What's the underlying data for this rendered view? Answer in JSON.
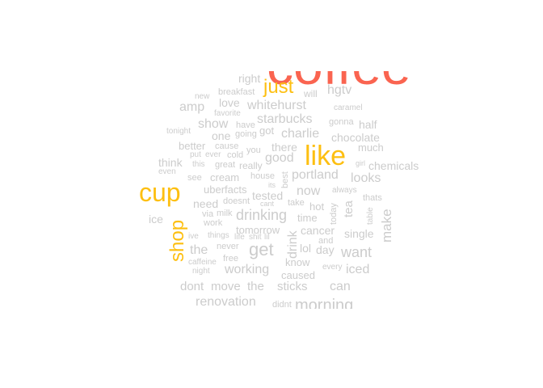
{
  "palette": {
    "low": "#cccccc",
    "mid": "#fdbf11",
    "high": "#fa6450"
  },
  "words": [
    {
      "text": "coffee",
      "tier": "high"
    },
    {
      "text": "like",
      "tier": "mid"
    },
    {
      "text": "cup",
      "tier": "mid"
    },
    {
      "text": "just",
      "tier": "mid"
    },
    {
      "text": "shop",
      "tier": "mid"
    },
    {
      "text": "right"
    },
    {
      "text": "new"
    },
    {
      "text": "breakfast"
    },
    {
      "text": "will"
    },
    {
      "text": "hgtv"
    },
    {
      "text": "amp"
    },
    {
      "text": "love"
    },
    {
      "text": "whitehurst"
    },
    {
      "text": "caramel"
    },
    {
      "text": "favorite"
    },
    {
      "text": "show"
    },
    {
      "text": "have"
    },
    {
      "text": "starbucks"
    },
    {
      "text": "gonna"
    },
    {
      "text": "half"
    },
    {
      "text": "tonight"
    },
    {
      "text": "one"
    },
    {
      "text": "going"
    },
    {
      "text": "got"
    },
    {
      "text": "charlie"
    },
    {
      "text": "chocolate"
    },
    {
      "text": "better"
    },
    {
      "text": "cause"
    },
    {
      "text": "there"
    },
    {
      "text": "much"
    },
    {
      "text": "put"
    },
    {
      "text": "ever"
    },
    {
      "text": "cold"
    },
    {
      "text": "you"
    },
    {
      "text": "good"
    },
    {
      "text": "think"
    },
    {
      "text": "this"
    },
    {
      "text": "great"
    },
    {
      "text": "really"
    },
    {
      "text": "girl"
    },
    {
      "text": "chemicals"
    },
    {
      "text": "even"
    },
    {
      "text": "see"
    },
    {
      "text": "cream"
    },
    {
      "text": "house"
    },
    {
      "text": "best"
    },
    {
      "text": "portland"
    },
    {
      "text": "looks"
    },
    {
      "text": "uberfacts"
    },
    {
      "text": "its"
    },
    {
      "text": "tested"
    },
    {
      "text": "now"
    },
    {
      "text": "always"
    },
    {
      "text": "need"
    },
    {
      "text": "doesnt"
    },
    {
      "text": "cant"
    },
    {
      "text": "take"
    },
    {
      "text": "today"
    },
    {
      "text": "tea"
    },
    {
      "text": "thats"
    },
    {
      "text": "ice"
    },
    {
      "text": "via"
    },
    {
      "text": "milk"
    },
    {
      "text": "drinking"
    },
    {
      "text": "hot"
    },
    {
      "text": "table"
    },
    {
      "text": "make"
    },
    {
      "text": "time"
    },
    {
      "text": "work"
    },
    {
      "text": "tomorrow"
    },
    {
      "text": "cancer"
    },
    {
      "text": "ive"
    },
    {
      "text": "things"
    },
    {
      "text": "life"
    },
    {
      "text": "shit"
    },
    {
      "text": "lil"
    },
    {
      "text": "drink"
    },
    {
      "text": "and"
    },
    {
      "text": "single"
    },
    {
      "text": "get"
    },
    {
      "text": "never"
    },
    {
      "text": "the"
    },
    {
      "text": "lol"
    },
    {
      "text": "day"
    },
    {
      "text": "want"
    },
    {
      "text": "free"
    },
    {
      "text": "caffeine"
    },
    {
      "text": "know"
    },
    {
      "text": "every"
    },
    {
      "text": "iced"
    },
    {
      "text": "night"
    },
    {
      "text": "working"
    },
    {
      "text": "caused"
    },
    {
      "text": "dont"
    },
    {
      "text": "move"
    },
    {
      "text": "the"
    },
    {
      "text": "sticks"
    },
    {
      "text": "can"
    },
    {
      "text": "renovation"
    },
    {
      "text": "didnt"
    },
    {
      "text": "morning"
    }
  ]
}
